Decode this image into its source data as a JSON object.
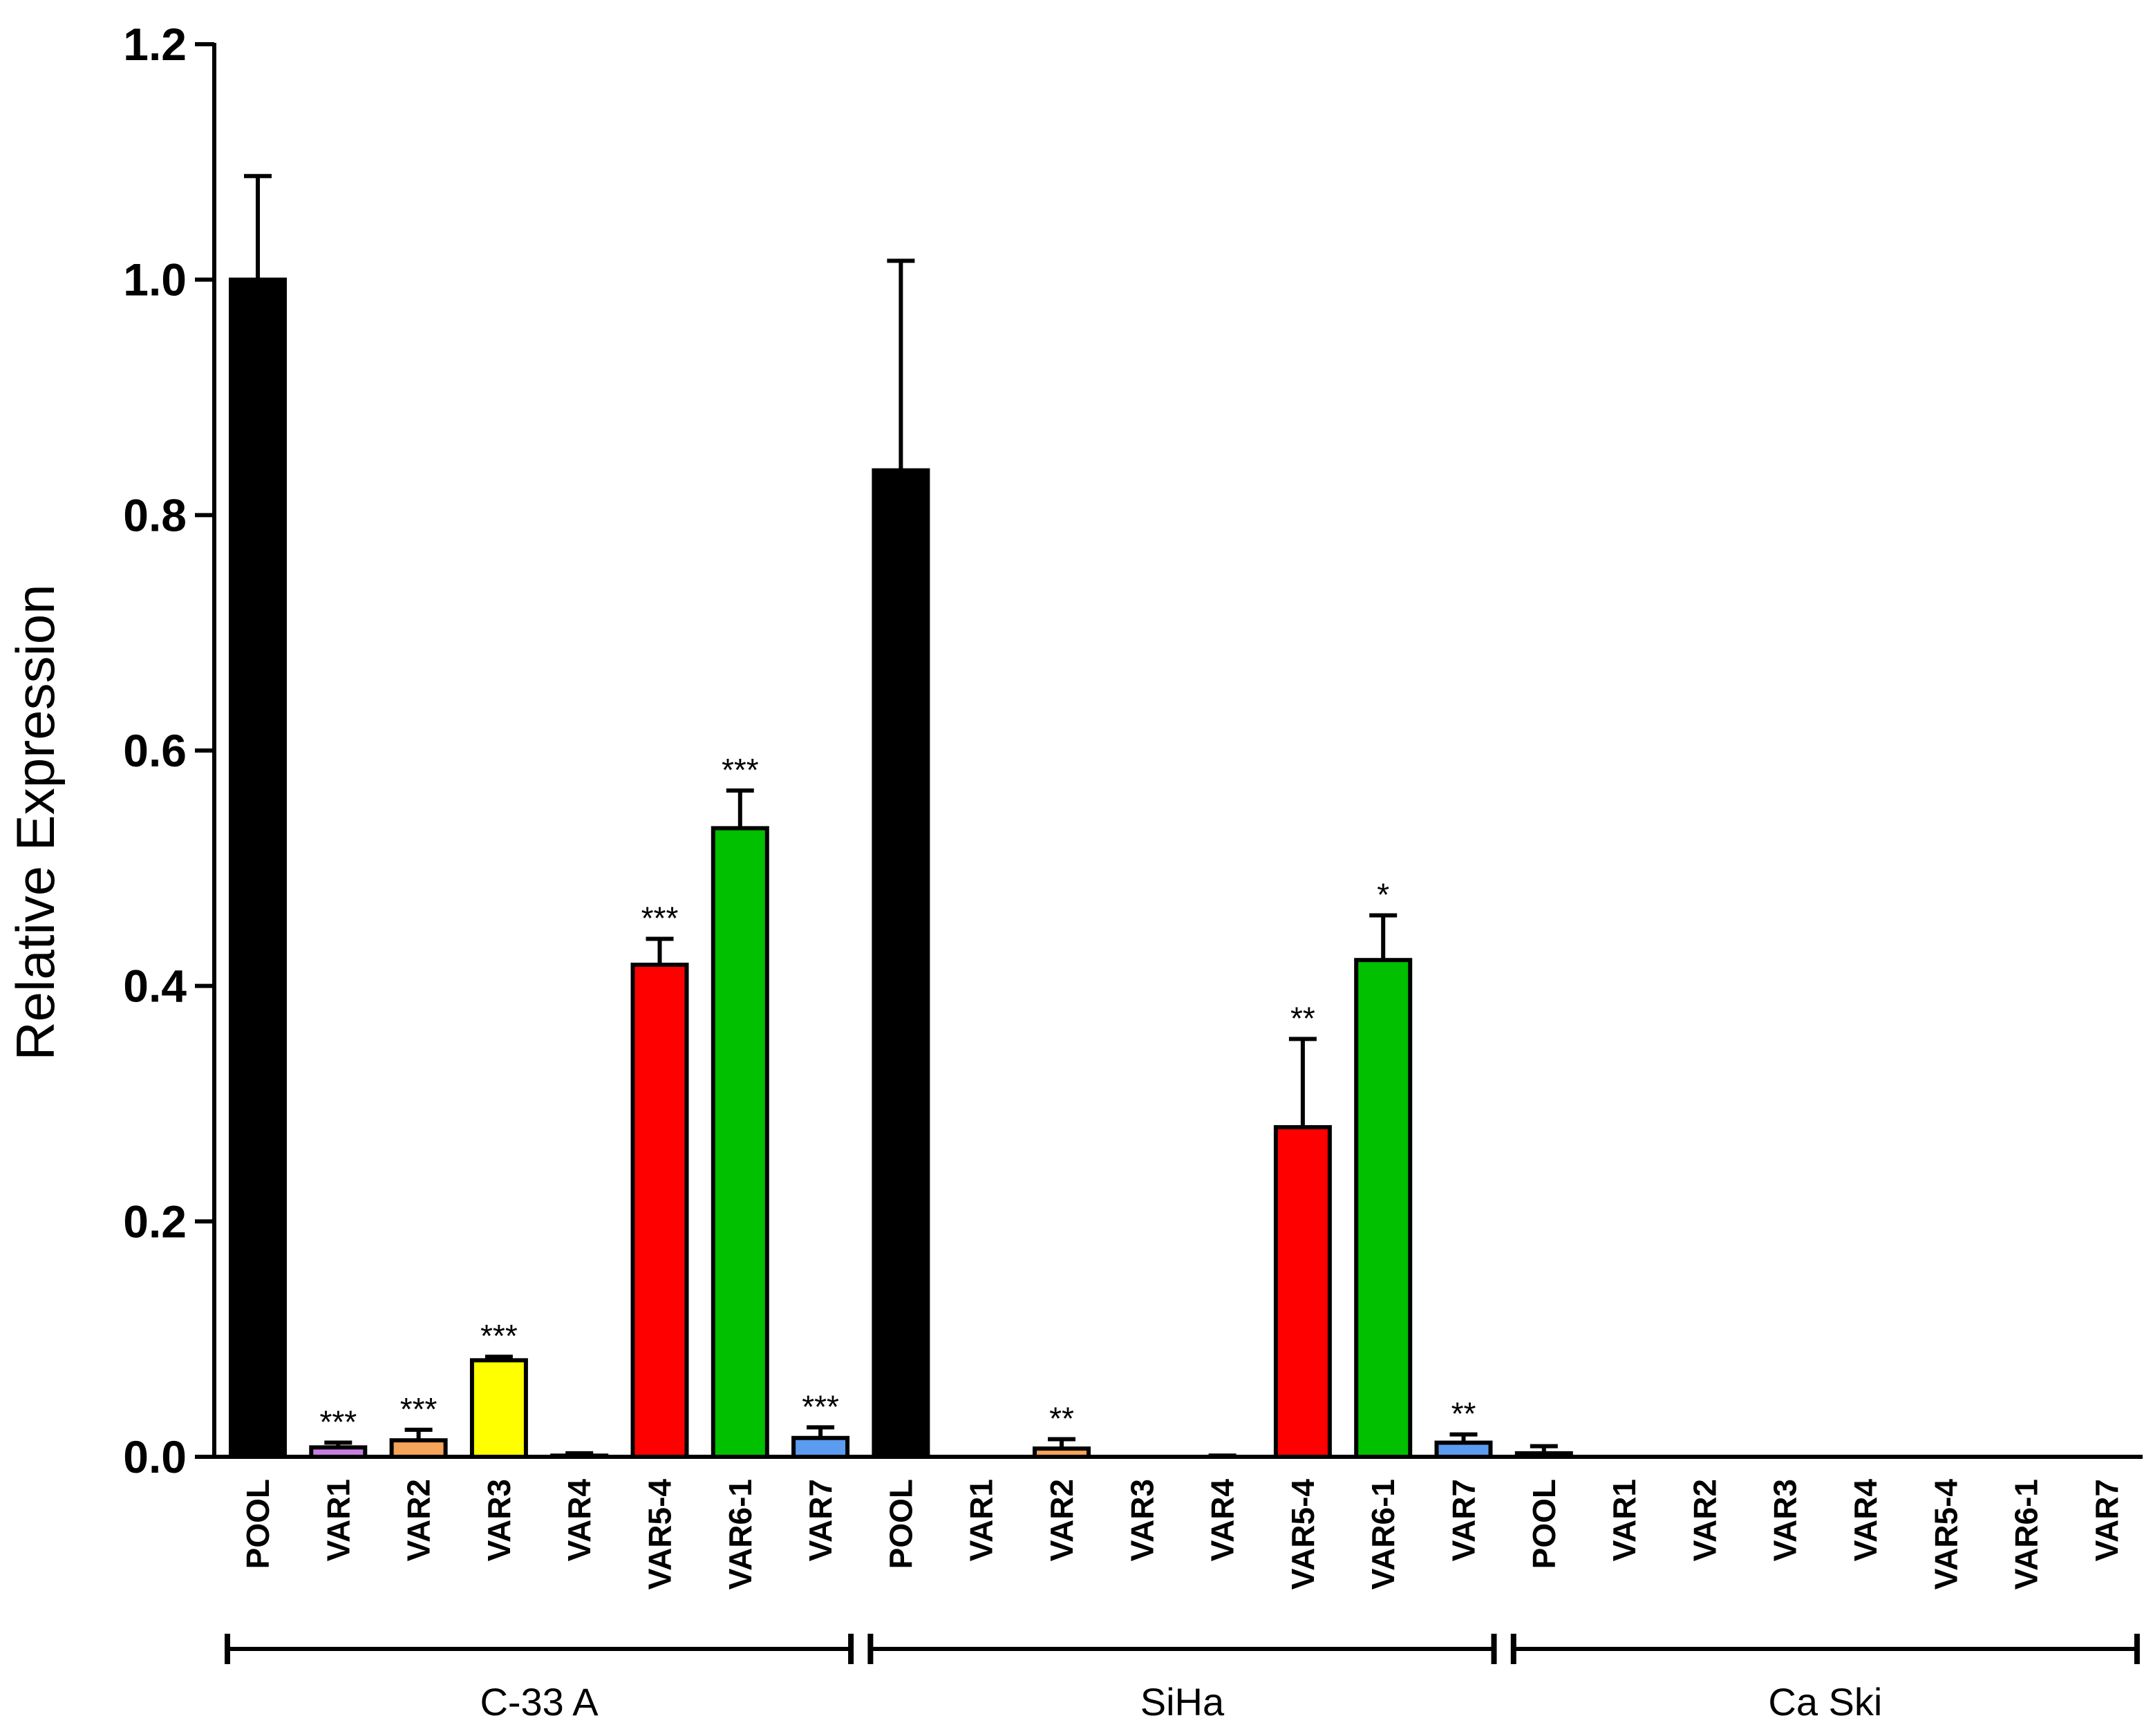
{
  "chart_data": {
    "type": "bar",
    "ylabel": "Relative Expression",
    "ylim": [
      0,
      1.2
    ],
    "yticks": [
      "0.0",
      "0.2",
      "0.4",
      "0.6",
      "0.8",
      "1.0",
      "1.2"
    ],
    "grid": false,
    "legend": "none",
    "colors": {
      "POOL": "#000000",
      "VAR1": "#c87ee0",
      "VAR2": "#f5a45a",
      "VAR3": "#ffff00",
      "VAR4": "#000000",
      "VAR5-4": "#ff0000",
      "VAR6-1": "#00c000",
      "VAR7": "#5b9bf0"
    },
    "groups": [
      {
        "name": "C-33 A",
        "bars": [
          {
            "label": "POOL",
            "value": 1.0,
            "error": 0.088,
            "sig": ""
          },
          {
            "label": "VAR1",
            "value": 0.008,
            "error": 0.004,
            "sig": "***"
          },
          {
            "label": "VAR2",
            "value": 0.014,
            "error": 0.009,
            "sig": "***"
          },
          {
            "label": "VAR3",
            "value": 0.082,
            "error": 0.003,
            "sig": "***"
          },
          {
            "label": "VAR4",
            "value": 0.001,
            "error": 0.002,
            "sig": ""
          },
          {
            "label": "VAR5-4",
            "value": 0.418,
            "error": 0.022,
            "sig": "***"
          },
          {
            "label": "VAR6-1",
            "value": 0.534,
            "error": 0.032,
            "sig": "***"
          },
          {
            "label": "VAR7",
            "value": 0.016,
            "error": 0.009,
            "sig": "***"
          }
        ]
      },
      {
        "name": "SiHa",
        "bars": [
          {
            "label": "POOL",
            "value": 0.838,
            "error": 0.178,
            "sig": ""
          },
          {
            "label": "VAR1",
            "value": 0.0,
            "error": 0.0,
            "sig": ""
          },
          {
            "label": "VAR2",
            "value": 0.007,
            "error": 0.008,
            "sig": "**"
          },
          {
            "label": "VAR3",
            "value": 0.0,
            "error": 0.0,
            "sig": ""
          },
          {
            "label": "VAR4",
            "value": 0.0,
            "error": 0.001,
            "sig": ""
          },
          {
            "label": "VAR5-4",
            "value": 0.28,
            "error": 0.075,
            "sig": "**"
          },
          {
            "label": "VAR6-1",
            "value": 0.422,
            "error": 0.038,
            "sig": "*"
          },
          {
            "label": "VAR7",
            "value": 0.012,
            "error": 0.007,
            "sig": "**"
          }
        ]
      },
      {
        "name": "Ca Ski",
        "bars": [
          {
            "label": "POOL",
            "value": 0.003,
            "error": 0.006,
            "sig": ""
          },
          {
            "label": "VAR1",
            "value": 0.0,
            "error": 0.0,
            "sig": ""
          },
          {
            "label": "VAR2",
            "value": 0.0,
            "error": 0.0,
            "sig": ""
          },
          {
            "label": "VAR3",
            "value": 0.0,
            "error": 0.0,
            "sig": ""
          },
          {
            "label": "VAR4",
            "value": 0.0,
            "error": 0.0,
            "sig": ""
          },
          {
            "label": "VAR5-4",
            "value": 0.0,
            "error": 0.0,
            "sig": ""
          },
          {
            "label": "VAR6-1",
            "value": 0.0,
            "error": 0.0,
            "sig": ""
          },
          {
            "label": "VAR7",
            "value": 0.0,
            "error": 0.0,
            "sig": ""
          }
        ]
      }
    ]
  }
}
